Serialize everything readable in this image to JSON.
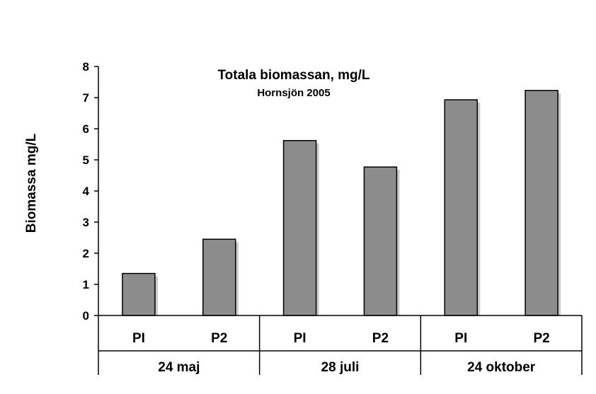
{
  "chart_data": {
    "type": "bar",
    "title": "Totala biomassan, mg/L",
    "subtitle": "Hornsjön 2005",
    "ylabel": "Biomassa mg/L",
    "xlabel": "",
    "ylim": [
      0,
      8
    ],
    "yticks": [
      "0",
      "1",
      "2",
      "3",
      "4",
      "5",
      "6",
      "7",
      "8"
    ],
    "categories": [
      "PI",
      "P2",
      "PI",
      "P2",
      "PI",
      "P2"
    ],
    "groups": [
      {
        "label": "24 maj",
        "span": 2
      },
      {
        "label": "28 juli",
        "span": 2
      },
      {
        "label": "24 oktober",
        "span": 2
      }
    ],
    "values": [
      1.35,
      2.45,
      5.62,
      4.77,
      6.93,
      7.23
    ],
    "grid": false,
    "colors": {
      "bar": "#8c8c8c",
      "shadow": "#c8c8c8",
      "axis": "#000000"
    }
  }
}
